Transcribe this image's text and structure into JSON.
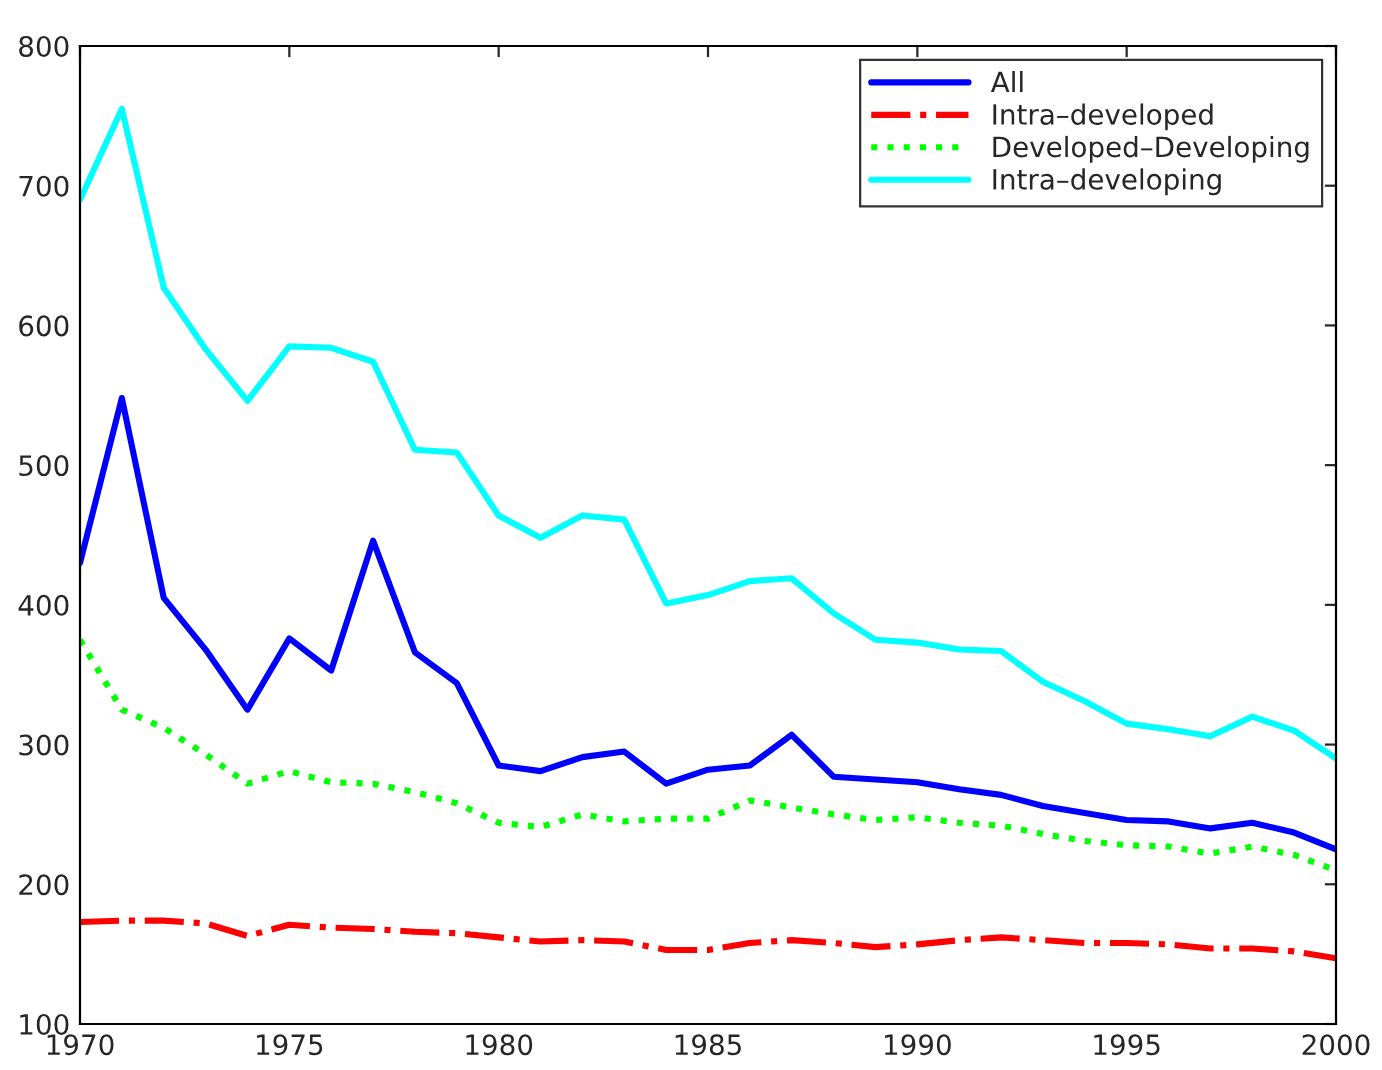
{
  "chart_data": {
    "type": "line",
    "x": [
      1970,
      1971,
      1972,
      1973,
      1974,
      1975,
      1976,
      1977,
      1978,
      1979,
      1980,
      1981,
      1982,
      1983,
      1984,
      1985,
      1986,
      1987,
      1988,
      1989,
      1990,
      1991,
      1992,
      1993,
      1994,
      1995,
      1996,
      1997,
      1998,
      1999,
      2000
    ],
    "series": [
      {
        "name": "All",
        "color": "#0000ff",
        "line_style": "solid",
        "values": [
          430,
          548,
          405,
          368,
          325,
          376,
          353,
          446,
          366,
          344,
          285,
          281,
          291,
          295,
          272,
          282,
          285,
          307,
          277,
          275,
          273,
          268,
          264,
          256,
          251,
          246,
          245,
          240,
          244,
          237,
          225
        ]
      },
      {
        "name": "Intra–developed",
        "color": "#ff0000",
        "line_style": "dashdot",
        "values": [
          173,
          174,
          174,
          172,
          163,
          171,
          169,
          168,
          166,
          165,
          162,
          159,
          160,
          159,
          153,
          153,
          158,
          160,
          158,
          155,
          157,
          160,
          162,
          160,
          158,
          158,
          157,
          154,
          154,
          152,
          147
        ]
      },
      {
        "name": "Developed–Developing",
        "color": "#00ff00",
        "line_style": "dotted",
        "values": [
          375,
          325,
          312,
          293,
          272,
          281,
          273,
          272,
          266,
          258,
          244,
          241,
          250,
          245,
          247,
          247,
          260,
          255,
          250,
          246,
          248,
          244,
          242,
          236,
          231,
          228,
          227,
          222,
          227,
          221,
          210
        ]
      },
      {
        "name": "Intra–developing",
        "color": "#00ffff",
        "line_style": "solid",
        "values": [
          690,
          755,
          627,
          583,
          546,
          585,
          584,
          574,
          511,
          509,
          464,
          448,
          464,
          461,
          401,
          407,
          417,
          419,
          394,
          375,
          373,
          368,
          367,
          345,
          331,
          315,
          311,
          306,
          320,
          310,
          290
        ]
      }
    ],
    "xlim": [
      1970,
      2000
    ],
    "xticks": [
      1970,
      1975,
      1980,
      1985,
      1990,
      1995,
      2000
    ],
    "ylim": [
      100,
      800
    ],
    "yticks": [
      100,
      200,
      300,
      400,
      500,
      600,
      700,
      800
    ],
    "grid": false,
    "legend": "top right"
  }
}
